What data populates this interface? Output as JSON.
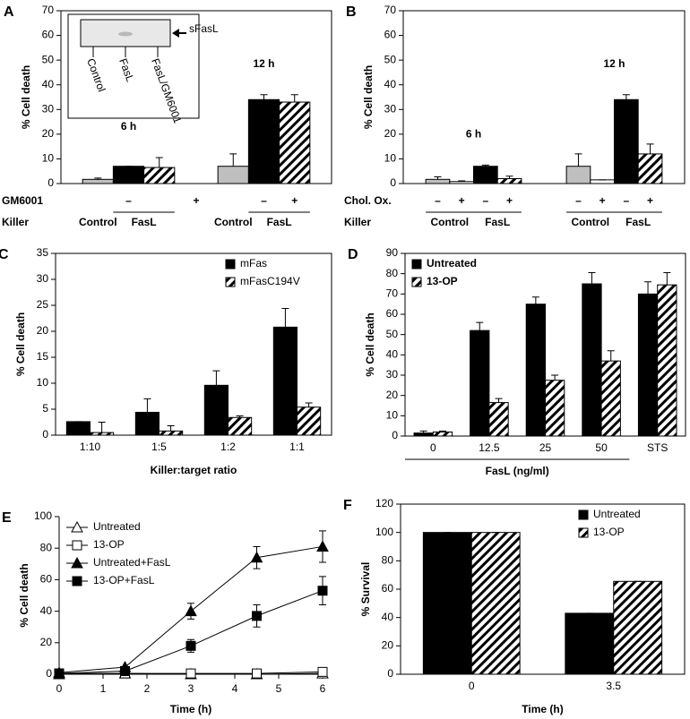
{
  "chart_data": [
    {
      "type": "bar",
      "label": "A",
      "ylabel": "% Cell death",
      "ylim": [
        0,
        70
      ],
      "yticks": [
        0,
        10,
        20,
        30,
        40,
        50,
        60,
        70
      ],
      "group_labels": [
        "6 h",
        "12 h"
      ],
      "series": [
        {
          "color": "#bfbfbf",
          "values": [
            1.7,
            7
          ],
          "errors": [
            0.5,
            5
          ]
        },
        {
          "color": "#000000",
          "values": [
            7,
            34
          ],
          "errors": [
            0,
            2
          ]
        },
        {
          "color": "#000000",
          "pattern": "hatch",
          "values": [
            6.5,
            33
          ],
          "errors": [
            4,
            3
          ]
        }
      ],
      "rows": [
        {
          "label": "GM6001",
          "labels": [
            null,
            "–",
            "+",
            null,
            "–",
            "+"
          ]
        },
        {
          "label": "Killer",
          "labels": [
            "Control",
            "FasL",
            null,
            "Control",
            "FasL",
            null
          ]
        }
      ],
      "inset": {
        "band_label": "sFasL",
        "lanes": [
          "Control",
          "FasL",
          "FasL/GM6001"
        ]
      }
    },
    {
      "type": "bar",
      "label": "B",
      "ylabel": "% Cell death",
      "ylim": [
        0,
        70
      ],
      "yticks": [
        0,
        10,
        20,
        30,
        40,
        50,
        60,
        70
      ],
      "group_labels": [
        "6 h",
        "12 h"
      ],
      "series": [
        {
          "color": "#bfbfbf",
          "values": [
            1.7,
            7
          ],
          "errors": [
            1,
            5
          ]
        },
        {
          "color": "#ffffff",
          "values": [
            0.8,
            1.5
          ],
          "errors": [
            0.3,
            0
          ]
        },
        {
          "color": "#000000",
          "values": [
            7,
            34
          ],
          "errors": [
            0.5,
            2
          ]
        },
        {
          "color": "#000000",
          "pattern": "hatch",
          "values": [
            2,
            12
          ],
          "errors": [
            1,
            4
          ]
        }
      ],
      "rows": [
        {
          "label": "Chol. Ox.",
          "labels": [
            "–",
            "+",
            "–",
            "+",
            "–",
            "+",
            "–",
            "+"
          ]
        },
        {
          "label": "Killer",
          "labels": [
            "Control",
            null,
            "FasL",
            null,
            "Control",
            null,
            "FasL",
            null
          ]
        }
      ]
    },
    {
      "type": "bar",
      "label": "C",
      "ylabel": "% Cell death",
      "xlabel": "Killer:target ratio",
      "ylim": [
        0,
        35
      ],
      "yticks": [
        0,
        5,
        10,
        15,
        20,
        25,
        30,
        35
      ],
      "categories": [
        "1:10",
        "1:5",
        "1:2",
        "1:1"
      ],
      "legend": "upper right",
      "series": [
        {
          "name": "mFas",
          "color": "#000000",
          "values": [
            2.6,
            4.4,
            9.6,
            20.8
          ],
          "errors": [
            0,
            2.6,
            2.8,
            3.6
          ]
        },
        {
          "name": "mFasC194V",
          "color": "#000000",
          "pattern": "hatch",
          "values": [
            0.5,
            0.8,
            3.4,
            5.4
          ],
          "errors": [
            2,
            1,
            0.3,
            0.8
          ]
        }
      ]
    },
    {
      "type": "bar",
      "label": "D",
      "ylabel": "% Cell death",
      "xlabel": "FasL (ng/ml)",
      "ylim": [
        0,
        90
      ],
      "yticks": [
        0,
        10,
        20,
        30,
        40,
        50,
        60,
        70,
        80,
        90
      ],
      "categories": [
        "0",
        "12.5",
        "25",
        "50",
        "STS"
      ],
      "legend": "upper left",
      "series": [
        {
          "name": "Untreated",
          "color": "#000000",
          "values": [
            1.5,
            52,
            65,
            75,
            70
          ],
          "errors": [
            1,
            4,
            3.5,
            5.5,
            6
          ]
        },
        {
          "name": "13-OP",
          "color": "#000000",
          "pattern": "hatch",
          "values": [
            2,
            16.5,
            27.5,
            37,
            74.5
          ],
          "errors": [
            0.5,
            2,
            2.5,
            5,
            6
          ]
        }
      ]
    },
    {
      "type": "line",
      "label": "E",
      "ylabel": "% Cell death",
      "xlabel": "Time (h)",
      "xlim": [
        0,
        6
      ],
      "xticks": [
        0,
        1,
        2,
        3,
        4,
        5,
        6
      ],
      "ylim": [
        0,
        100
      ],
      "yticks": [
        0,
        20,
        40,
        60,
        80,
        100
      ],
      "legend": "upper left",
      "x": [
        0,
        1.5,
        3,
        4.5,
        6
      ],
      "series": [
        {
          "name": "Untreated",
          "color": "#000000",
          "marker": "triangle",
          "filled": false,
          "values": [
            0,
            0.5,
            0,
            0,
            0.5
          ],
          "errors": [
            0,
            0,
            1,
            1,
            1
          ]
        },
        {
          "name": "13-OP",
          "color": "#000000",
          "marker": "square",
          "filled": false,
          "values": [
            0.5,
            0.5,
            0.5,
            0.5,
            1.5
          ],
          "errors": [
            0,
            0,
            2,
            1,
            2
          ]
        },
        {
          "name": "Untreated+FasL",
          "color": "#000000",
          "marker": "triangle",
          "filled": true,
          "values": [
            1,
            4.5,
            40,
            74,
            81
          ],
          "errors": [
            0,
            0,
            5,
            7,
            10
          ]
        },
        {
          "name": "13-OP+FasL",
          "color": "#000000",
          "marker": "square",
          "filled": true,
          "values": [
            0.5,
            2,
            18,
            37,
            53
          ],
          "errors": [
            0,
            0,
            4,
            7,
            9
          ]
        }
      ]
    },
    {
      "type": "bar",
      "label": "F",
      "ylabel": "% Survival",
      "xlabel": "Time (h)",
      "ylim": [
        0,
        120
      ],
      "yticks": [
        0,
        20,
        40,
        60,
        80,
        100,
        120
      ],
      "categories": [
        "0",
        "3.5"
      ],
      "legend": "upper right",
      "series": [
        {
          "name": "Untreated",
          "color": "#000000",
          "values": [
            100,
            43
          ],
          "errors": [
            0,
            0
          ]
        },
        {
          "name": "13-OP",
          "color": "#000000",
          "pattern": "hatch",
          "values": [
            100,
            65.5
          ],
          "errors": [
            0,
            0
          ]
        }
      ]
    }
  ]
}
